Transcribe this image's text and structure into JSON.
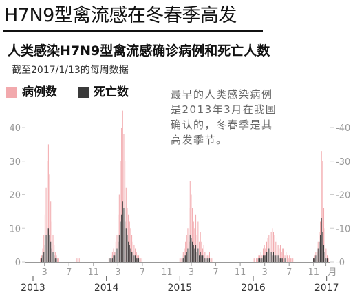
{
  "headline": "H7N9型禽流感在冬春季高发",
  "subtitle": "人类感染H7N9型禽流感确诊病例和死亡人数",
  "note": "截至2017/1/13的每周数据",
  "legend": {
    "cases": "病例数",
    "deaths": "死亡数"
  },
  "annotation": [
    "最早的人类感染病例",
    "是2013年3月在我国",
    "确认的，冬春季是其",
    "高发季节。"
  ],
  "colors": {
    "cases": "#f2a9ad",
    "deaths": "#3a3a3a",
    "axis": "#999999",
    "text": "#111111"
  },
  "chart_data": {
    "type": "bar",
    "x_unit": "week",
    "x_range": [
      "2013-01",
      "2017-01-13"
    ],
    "y_left_ticks": [
      "0",
      "10",
      "20",
      "30",
      "40"
    ],
    "y_right_ticks": [
      "0",
      "10",
      "20",
      "30",
      "40"
    ],
    "ylim": [
      0,
      45
    ],
    "month_ticks": [
      {
        "label": "3",
        "month": 3
      },
      {
        "label": "7",
        "month": 7
      },
      {
        "label": "11",
        "month": 11
      },
      {
        "label": "3",
        "month": 15
      },
      {
        "label": "7",
        "month": 19
      },
      {
        "label": "11",
        "month": 23
      },
      {
        "label": "3",
        "month": 27
      },
      {
        "label": "7",
        "month": 31
      },
      {
        "label": "11",
        "month": 35
      },
      {
        "label": "3",
        "month": 39
      },
      {
        "label": "7",
        "month": 43
      },
      {
        "label": "11",
        "month": 47
      },
      {
        "label": "月",
        "month": 49
      }
    ],
    "year_ticks": [
      {
        "label": "2013",
        "month": 0
      },
      {
        "label": "2014",
        "month": 12
      },
      {
        "label": "2015",
        "month": 24
      },
      {
        "label": "2016",
        "month": 36
      },
      {
        "label": "2017",
        "month": 48
      }
    ],
    "series": [
      {
        "name": "病例数",
        "values": [
          0,
          0,
          0,
          0,
          0,
          0,
          0,
          0,
          0,
          0,
          0,
          0,
          1,
          2,
          4,
          8,
          14,
          22,
          30,
          35,
          26,
          18,
          12,
          8,
          5,
          3,
          2,
          1,
          1,
          0,
          0,
          0,
          0,
          0,
          0,
          0,
          0,
          0,
          0,
          0,
          0,
          0,
          0,
          0,
          1,
          0,
          1,
          0,
          0,
          0,
          0,
          0,
          0,
          0,
          0,
          0,
          0,
          0,
          0,
          0,
          0,
          0,
          0,
          0,
          0,
          0,
          0,
          0,
          0,
          0,
          0,
          0,
          1,
          1,
          2,
          3,
          4,
          3,
          6,
          8,
          14,
          20,
          30,
          40,
          45,
          38,
          30,
          22,
          16,
          14,
          12,
          10,
          8,
          6,
          5,
          4,
          3,
          2,
          2,
          1,
          1,
          1,
          0,
          0,
          0,
          0,
          0,
          0,
          0,
          0,
          0,
          0,
          0,
          0,
          0,
          0,
          0,
          0,
          0,
          0,
          0,
          0,
          0,
          0,
          0,
          0,
          0,
          0,
          0,
          0,
          0,
          0,
          0,
          0,
          1,
          1,
          2,
          3,
          4,
          6,
          8,
          10,
          16,
          24,
          20,
          16,
          12,
          10,
          14,
          8,
          12,
          6,
          9,
          6,
          4,
          5,
          3,
          4,
          2,
          2,
          3,
          1,
          1,
          1,
          0,
          0,
          0,
          0,
          0,
          0,
          0,
          0,
          0,
          0,
          0,
          0,
          0,
          0,
          0,
          0,
          0,
          0,
          0,
          0,
          0,
          0,
          0,
          0,
          0,
          0,
          0,
          0,
          0,
          0,
          0,
          0,
          0,
          0,
          1,
          1,
          0,
          1,
          1,
          2,
          2,
          3,
          2,
          4,
          5,
          4,
          6,
          7,
          8,
          6,
          9,
          10,
          9,
          8,
          6,
          7,
          5,
          4,
          5,
          3,
          4,
          4,
          2,
          3,
          2,
          1,
          2,
          1,
          1,
          1,
          0,
          0,
          0,
          0,
          0,
          0,
          0,
          0,
          0,
          0,
          0,
          0,
          0,
          0,
          0,
          0,
          0,
          1,
          2,
          3,
          4,
          6,
          9,
          12,
          33,
          30,
          16,
          10,
          4,
          2,
          1
        ]
      },
      {
        "name": "死亡数",
        "values": [
          0,
          0,
          0,
          0,
          0,
          0,
          0,
          0,
          0,
          0,
          0,
          0,
          0,
          1,
          2,
          3,
          5,
          8,
          10,
          10,
          8,
          6,
          4,
          3,
          2,
          1,
          1,
          0,
          0,
          0,
          0,
          0,
          0,
          0,
          0,
          0,
          0,
          0,
          0,
          0,
          0,
          0,
          0,
          0,
          0,
          0,
          0,
          0,
          0,
          0,
          0,
          0,
          0,
          0,
          0,
          0,
          0,
          0,
          0,
          0,
          0,
          0,
          0,
          0,
          0,
          0,
          0,
          0,
          0,
          0,
          0,
          0,
          0,
          1,
          1,
          1,
          2,
          2,
          3,
          4,
          6,
          8,
          12,
          14,
          18,
          16,
          12,
          10,
          8,
          6,
          5,
          4,
          3,
          3,
          2,
          2,
          1,
          1,
          1,
          0,
          0,
          0,
          0,
          0,
          0,
          0,
          0,
          0,
          0,
          0,
          0,
          0,
          0,
          0,
          0,
          0,
          0,
          0,
          0,
          0,
          0,
          0,
          0,
          0,
          0,
          0,
          0,
          0,
          0,
          0,
          0,
          0,
          0,
          0,
          0,
          0,
          1,
          1,
          2,
          2,
          3,
          4,
          6,
          8,
          7,
          6,
          5,
          4,
          5,
          3,
          4,
          2,
          3,
          2,
          2,
          2,
          1,
          1,
          1,
          1,
          1,
          0,
          0,
          0,
          0,
          0,
          0,
          0,
          0,
          0,
          0,
          0,
          0,
          0,
          0,
          0,
          0,
          0,
          0,
          0,
          0,
          0,
          0,
          0,
          0,
          0,
          0,
          0,
          0,
          0,
          0,
          0,
          0,
          0,
          0,
          0,
          0,
          0,
          0,
          0,
          0,
          0,
          0,
          1,
          1,
          1,
          1,
          2,
          2,
          2,
          3,
          3,
          4,
          3,
          3,
          2,
          3,
          2,
          2,
          1,
          2,
          1,
          1,
          1,
          1,
          0,
          1,
          0,
          0,
          0,
          0,
          0,
          0,
          0,
          0,
          0,
          0,
          0,
          0,
          0,
          0,
          0,
          0,
          0,
          0,
          0,
          0,
          0,
          0,
          0,
          0,
          1,
          1,
          2,
          3,
          4,
          6,
          8,
          13,
          9,
          5,
          3,
          1,
          1,
          0
        ]
      }
    ]
  }
}
